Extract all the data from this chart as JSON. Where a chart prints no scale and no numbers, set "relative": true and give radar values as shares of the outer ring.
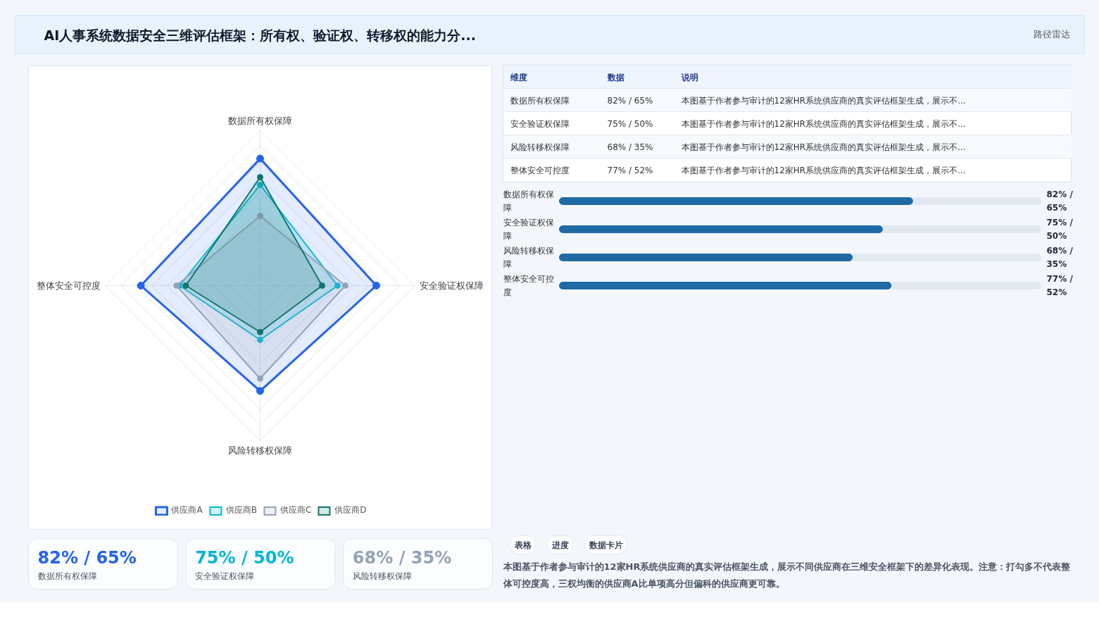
{
  "chart_data": [
    {
      "type": "other",
      "title": "AI人事系统数据安全三维评估框架：所有权、验证权、转移权的能力分...",
      "subtitle": "路径雷达"
    },
    {
      "type": "radar",
      "categories": [
        "数据所有权保障",
        "安全验证权保障",
        "风险转移权保障",
        "整体安全可控度"
      ],
      "relative": true,
      "grid": true,
      "legend": "bottom",
      "marker": "circle",
      "series": [
        {
          "name": "供应商A",
          "color": "#2563eb",
          "values": [
            0.82,
            0.75,
            0.68,
            0.77
          ]
        },
        {
          "name": "供应商B",
          "color": "#06b6d4",
          "values": [
            0.65,
            0.5,
            0.35,
            0.52
          ]
        },
        {
          "name": "供应商C",
          "color": "#94a3b8",
          "values": [
            0.45,
            0.55,
            0.6,
            0.54
          ]
        },
        {
          "name": "供应商D",
          "color": "#0f766e",
          "values": [
            0.7,
            0.4,
            0.3,
            0.48
          ]
        }
      ]
    },
    {
      "type": "other",
      "annotations": [
        "维度",
        "数据",
        "说明",
        "数据所有权保障",
        "82% / 65%",
        "本图基于作者参与审计的12家HR系统供应商的真实评估框架生成，展示不...",
        "安全验证权保障",
        "75% / 50%",
        "本图基于作者参与审计的12家HR系统供应商的真实评估框架生成，展示不...",
        "风险转移权保障",
        "68% / 35%",
        "本图基于作者参与审计的12家HR系统供应商的真实评估框架生成，展示不...",
        "整体安全可控度",
        "77% / 52%",
        "本图基于作者参与审计的12家HR系统供应商的真实评估框架生成，展示不..."
      ]
    },
    {
      "type": "bar",
      "orientation": "horizontal",
      "tick_labels": false,
      "categories": [
        "数据所有权保障",
        "安全验证权保障",
        "风险转移权保障",
        "整体安全可控度"
      ],
      "values": [
        82,
        75,
        68,
        77
      ],
      "value_labels": [
        "82% / 65%",
        "75% / 50%",
        "68% / 35%",
        "77% / 52%"
      ],
      "color": "#1f6aa5",
      "annotations": [
        "表格",
        "进度",
        "数据卡片",
        "本图基于作者参与审计的12家HR系统供应商的真实评估框架生成，展示不同供应商在三维安全框架下的差异化表现。注意：打勾多不代表整体可控度高，三权均衡的供应商A比单项高分但偏科的供应商更可靠。"
      ]
    },
    {
      "type": "other",
      "annotations": [
        "82% / 65%",
        "数据所有权保障",
        "75% / 50%",
        "安全验证权保障",
        "68% / 35%",
        "风险转移权保障"
      ],
      "colors": [
        "#2563eb",
        "#06b6d4",
        "#94a3b8"
      ]
    }
  ]
}
